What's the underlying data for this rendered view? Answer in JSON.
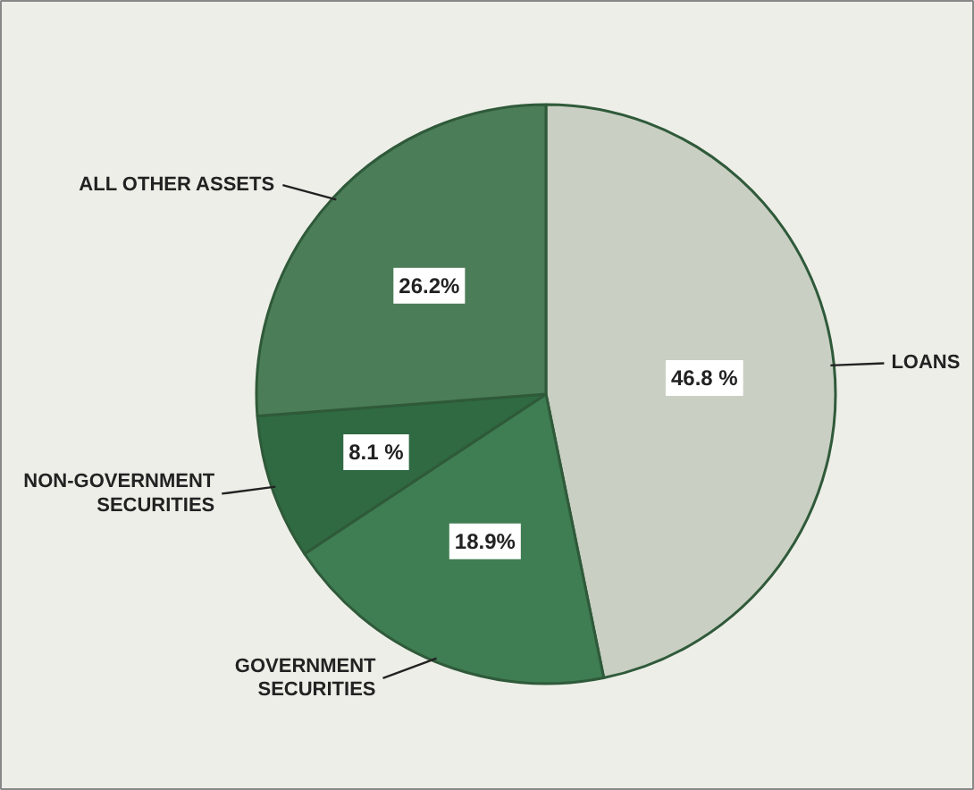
{
  "chart_data": {
    "type": "pie",
    "categories": [
      "LOANS",
      "GOVERNMENT\nSECURITIES",
      "NON-GOVERNMENT\nSECURITIES",
      "ALL OTHER ASSETS"
    ],
    "values": [
      46.8,
      18.9,
      8.1,
      26.2
    ],
    "value_labels": [
      "46.8 %",
      "18.9%",
      "8.1 %",
      "26.2%"
    ],
    "colors": [
      "#c9cfc2",
      "#3f7d52",
      "#2f6a43",
      "#4b7d58"
    ]
  }
}
